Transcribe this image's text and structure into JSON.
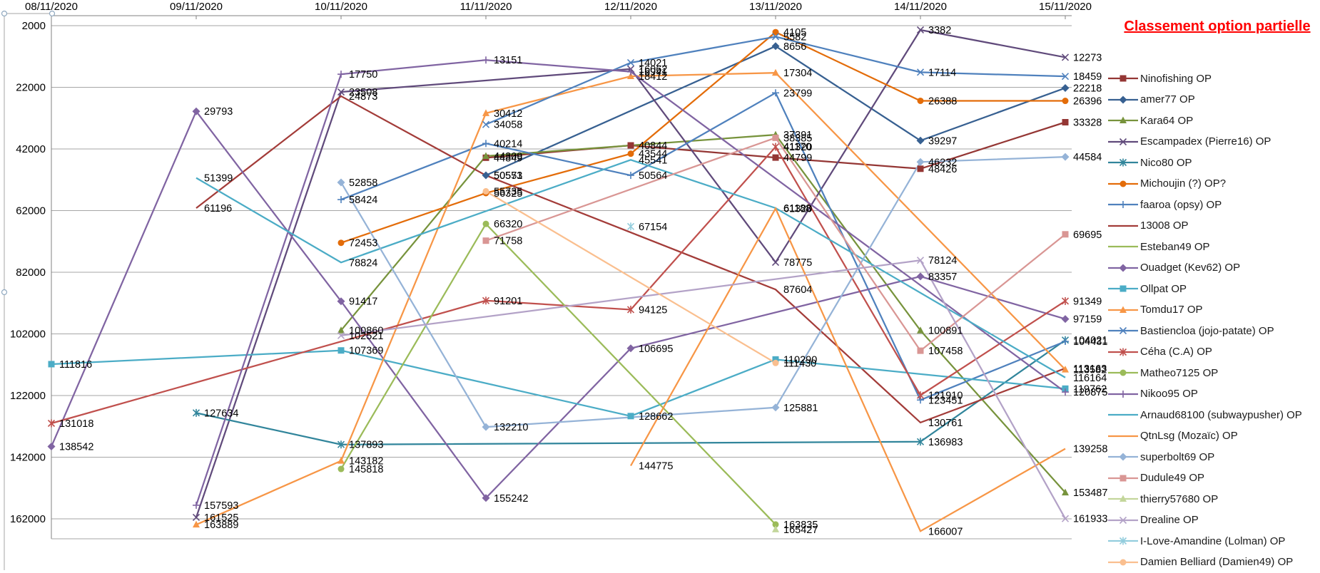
{
  "title": {
    "text": "Classement option partielle",
    "color": "#FF0000"
  },
  "chart_data": {
    "type": "line",
    "y_axis": {
      "min": 2000,
      "max": 162000,
      "step": 20000,
      "inverted": true,
      "ticks": [
        2000,
        22000,
        42000,
        62000,
        82000,
        102000,
        122000,
        142000,
        162000
      ]
    },
    "x_axis": {
      "position": "top"
    },
    "grid": "horizontal",
    "legend_position": "right",
    "dates": [
      "08/11/2020",
      "09/11/2020",
      "10/11/2020",
      "11/11/2020",
      "12/11/2020",
      "13/11/2020",
      "14/11/2020",
      "15/11/2020"
    ],
    "series": [
      {
        "name": "Ninofishing OP",
        "color": "#943634",
        "marker": "square",
        "values": [
          null,
          null,
          null,
          44849,
          40844,
          44799,
          48426,
          33328
        ]
      },
      {
        "name": "amer77 OP",
        "color": "#376091",
        "marker": "diamond",
        "values": [
          null,
          null,
          null,
          50553,
          null,
          8656,
          39297,
          22218
        ]
      },
      {
        "name": "Kara64  OP",
        "color": "#77933C",
        "marker": "triangle",
        "values": [
          null,
          null,
          100860,
          44309,
          null,
          37391,
          100891,
          153487
        ]
      },
      {
        "name": "Escampadex (Pierre16) OP",
        "color": "#604A7B",
        "marker": "x",
        "values": [
          null,
          161525,
          23508,
          null,
          16062,
          78775,
          3382,
          12273
        ]
      },
      {
        "name": "Nico80 OP",
        "color": "#31859B",
        "marker": "asterisk",
        "values": [
          null,
          127634,
          137893,
          null,
          null,
          null,
          136983,
          104021
        ]
      },
      {
        "name": "Michoujin (?) OP?",
        "color": "#E36C09",
        "marker": "circle",
        "values": [
          null,
          null,
          72453,
          56325,
          43544,
          4105,
          26388,
          26396
        ]
      },
      {
        "name": "faaroa (opsy) OP",
        "color": "#4F81BD",
        "marker": "plus",
        "values": [
          null,
          null,
          58424,
          40214,
          50564,
          23799,
          123451,
          104431
        ]
      },
      {
        "name": "13008 OP",
        "color": "#A33C39",
        "marker": "none",
        "values": [
          null,
          61196,
          24873,
          50571,
          null,
          87604,
          130761,
          113163
        ]
      },
      {
        "name": "Esteban49 OP",
        "color": "#9BBB59",
        "marker": "none",
        "values": [
          null,
          null,
          null,
          null,
          null,
          41170,
          null,
          null
        ]
      },
      {
        "name": "Ouadget (Kev62) OP",
        "color": "#8064A2",
        "marker": "diamond",
        "values": [
          138542,
          29793,
          91417,
          155242,
          106695,
          null,
          83357,
          97159
        ]
      },
      {
        "name": "Ollpat OP",
        "color": "#4BACC6",
        "marker": "square",
        "values": [
          111816,
          null,
          107369,
          null,
          128662,
          110290,
          null,
          119762
        ]
      },
      {
        "name": "Tomdu17 OP",
        "color": "#F79646",
        "marker": "triangle",
        "values": [
          null,
          163889,
          143182,
          30412,
          18412,
          17304,
          null,
          113582
        ]
      },
      {
        "name": "Bastiencloa (jojo-patate) OP",
        "color": "#4F81BD",
        "marker": "x",
        "values": [
          null,
          null,
          null,
          34058,
          14021,
          5582,
          17114,
          18459
        ]
      },
      {
        "name": "Céha (C.A) OP",
        "color": "#C0504D",
        "marker": "asterisk",
        "values": [
          131018,
          null,
          null,
          91201,
          94125,
          41320,
          121910,
          91349
        ]
      },
      {
        "name": "Matheo7125 OP",
        "color": "#9BBB59",
        "marker": "circle",
        "values": [
          null,
          null,
          145818,
          66320,
          null,
          163835,
          null,
          null
        ]
      },
      {
        "name": "Nikoo95 OP",
        "color": "#8064A2",
        "marker": "plus",
        "values": [
          null,
          157593,
          17750,
          13151,
          16941,
          null,
          null,
          120875
        ]
      },
      {
        "name": "Arnaud68100 (subwaypusher) OP",
        "color": "#4BACC6",
        "marker": "none",
        "values": [
          null,
          51399,
          78824,
          null,
          45541,
          61188,
          null,
          116164
        ]
      },
      {
        "name": "QtnLsg (Mozaïc) OP",
        "color": "#F79646",
        "marker": "none",
        "values": [
          null,
          null,
          null,
          null,
          144775,
          61320,
          166007,
          139258
        ]
      },
      {
        "name": "superbolt69 OP",
        "color": "#95B3D7",
        "marker": "diamond",
        "values": [
          null,
          null,
          52858,
          132210,
          null,
          125881,
          46232,
          44584
        ]
      },
      {
        "name": "Dudule49 OP",
        "color": "#D99694",
        "marker": "square",
        "values": [
          null,
          null,
          null,
          71758,
          null,
          38385,
          107458,
          69695
        ]
      },
      {
        "name": "thierry57680 OP",
        "color": "#C3D69B",
        "marker": "triangle",
        "values": [
          null,
          null,
          null,
          null,
          null,
          165427,
          null,
          null
        ]
      },
      {
        "name": "Drealine OP",
        "color": "#B3A2C7",
        "marker": "x",
        "values": [
          null,
          null,
          102521,
          null,
          null,
          null,
          78124,
          161933
        ]
      },
      {
        "name": "I-Love-Amandine (Lolman) OP",
        "color": "#93CDDD",
        "marker": "asterisk",
        "values": [
          null,
          null,
          null,
          null,
          67154,
          null,
          null,
          null
        ]
      },
      {
        "name": "Damien Belliard (Damien49) OP",
        "color": "#FABF8F",
        "marker": "circle",
        "values": [
          null,
          null,
          null,
          55735,
          null,
          111430,
          null,
          null
        ]
      }
    ]
  }
}
